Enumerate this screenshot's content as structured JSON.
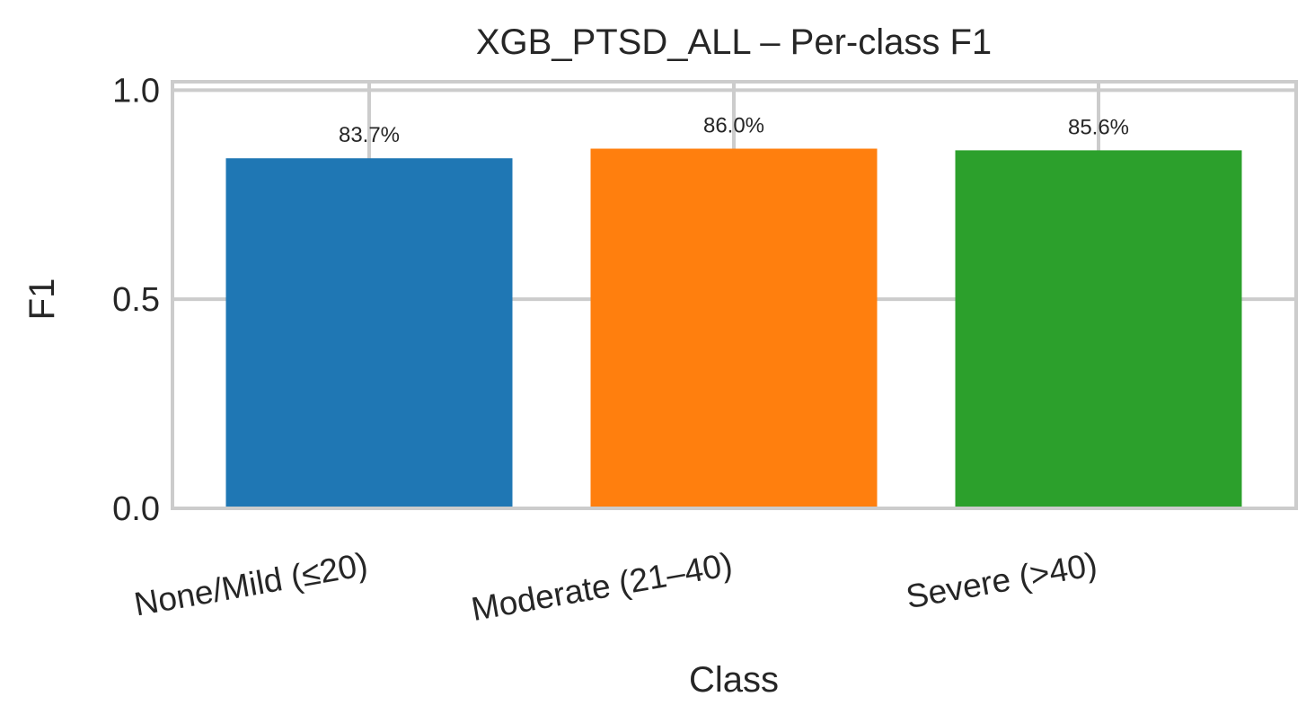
{
  "chart_data": {
    "type": "bar",
    "title": "XGB_PTSD_ALL – Per-class F1",
    "xlabel": "Class",
    "ylabel": "F1",
    "categories": [
      "None/Mild (≤20)",
      "Moderate (21–40)",
      "Severe (>40)"
    ],
    "values": [
      0.837,
      0.86,
      0.856
    ],
    "data_labels": [
      "83.7%",
      "86.0%",
      "85.6%"
    ],
    "colors": [
      "#1f77b4",
      "#ff7f0e",
      "#2ca02c"
    ],
    "yticks": [
      0.0,
      0.5,
      1.0
    ],
    "ytick_labels": [
      "0.0",
      "0.5",
      "1.0"
    ],
    "ylim": [
      0,
      1.02
    ],
    "grid": true,
    "grid_color": "#cccccc"
  }
}
